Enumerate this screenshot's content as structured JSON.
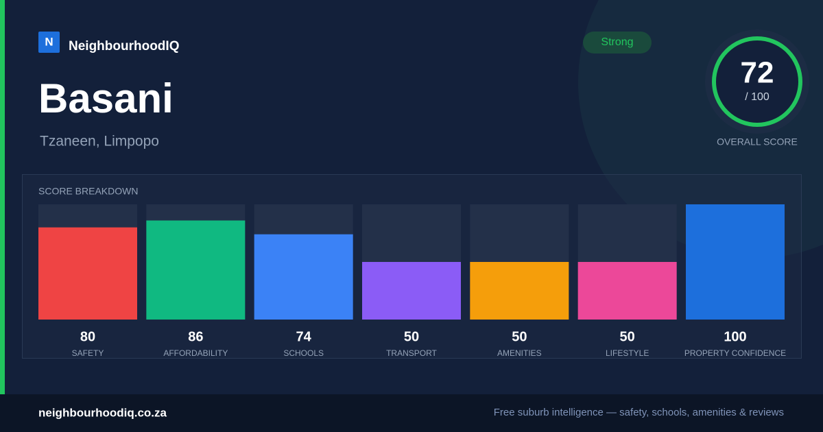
{
  "header": {
    "logo": "N",
    "brand": "NeighbourhoodIQ",
    "badge": "Strong",
    "title": "Basani",
    "subtitle": "Tzaneen, Limpopo"
  },
  "score": {
    "value": "72",
    "max": "/ 100",
    "label": "OVERALL SCORE"
  },
  "chart_data": {
    "type": "bar",
    "title": "SCORE BREAKDOWN",
    "categories": [
      "SAFETY",
      "AFFORDABILITY",
      "SCHOOLS",
      "TRANSPORT",
      "AMENITIES",
      "LIFESTYLE",
      "PROPERTY CONFIDENCE"
    ],
    "values": [
      80,
      86,
      74,
      50,
      50,
      50,
      100
    ],
    "colors": [
      "#ef4444",
      "#10b981",
      "#3b82f6",
      "#8b5cf6",
      "#f59e0b",
      "#ec4899",
      "#1d6fdc"
    ],
    "ylim": [
      0,
      100
    ]
  },
  "footer": {
    "domain": "neighbourhoodiq.co.za",
    "tagline": "Free suburb intelligence — safety, schools, amenities & reviews"
  }
}
